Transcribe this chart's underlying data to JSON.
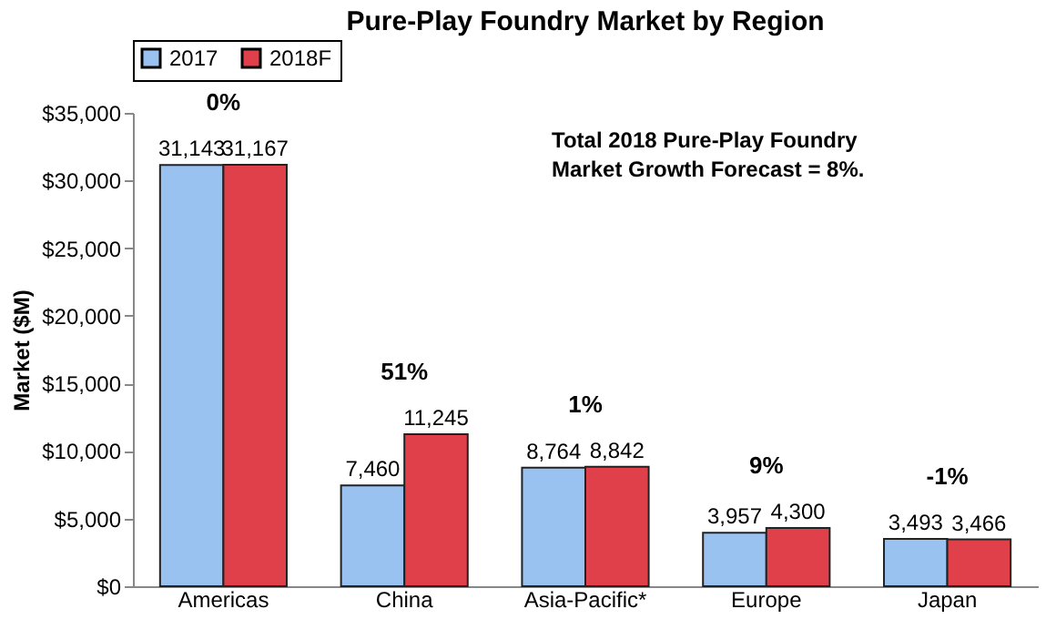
{
  "chart_data": {
    "type": "bar",
    "title": "Pure-Play Foundry Market by Region",
    "ylabel": "Market ($M)",
    "categories": [
      "Americas",
      "China",
      "Asia-Pacific*",
      "Europe",
      "Japan"
    ],
    "series": [
      {
        "name": "2017",
        "color": "#99c2f0",
        "values": [
          31143,
          7460,
          8764,
          3957,
          3493
        ],
        "value_labels": [
          "31,143",
          "7,460",
          "8,764",
          "3,957",
          "3,493"
        ]
      },
      {
        "name": "2018F",
        "color": "#e0404a",
        "values": [
          31167,
          11245,
          8842,
          4300,
          3466
        ],
        "value_labels": [
          "31,167",
          "11,245",
          "8,842",
          "4,300",
          "3,466"
        ]
      }
    ],
    "ylim": [
      0,
      35000
    ],
    "yticks": [
      {
        "value": 0,
        "label": "$0"
      },
      {
        "value": 5000,
        "label": "$5,000"
      },
      {
        "value": 10000,
        "label": "$10,000"
      },
      {
        "value": 15000,
        "label": "$15,000"
      },
      {
        "value": 20000,
        "label": "$20,000"
      },
      {
        "value": 25000,
        "label": "$25,000"
      },
      {
        "value": 30000,
        "label": "$30,000"
      },
      {
        "value": 35000,
        "label": "$35,000"
      }
    ],
    "legend": "top",
    "grid": false,
    "annotations": [
      "0%",
      "51%",
      "1%",
      "9%",
      "-1%",
      "Total 2018 Pure-Play Foundry\nMarket Growth Forecast = 8%."
    ]
  }
}
